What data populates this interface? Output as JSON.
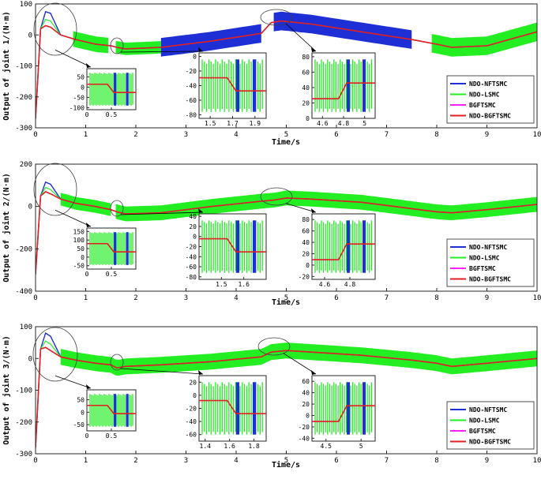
{
  "colors": {
    "nftsmc": "#1f2fd6",
    "lsmc": "#22ee22",
    "bgftsmc": "#ff22ff",
    "ndo_bgftsmc": "#e02020",
    "axis": "#262626",
    "ellipse": "#404040"
  },
  "legend": [
    "NDO-NFTSMC",
    "NDO-LSMC",
    "BGFTSMC",
    "NDO-BGFTSMC"
  ],
  "chart_data": [
    {
      "type": "line",
      "title": "",
      "xlabel": "Time/s",
      "ylabel": "Output of joint 1/(N·m)",
      "xlim": [
        0,
        10
      ],
      "ylim": [
        -300,
        100
      ],
      "xticks": [
        "0",
        "1",
        "2",
        "3",
        "4",
        "5",
        "6",
        "7",
        "8",
        "9",
        "10"
      ],
      "yticks": [
        "100",
        "0",
        "-100",
        "-200",
        "-300"
      ],
      "legend_position": "bottom-right",
      "baseline": {
        "x": [
          0,
          0.1,
          0.2,
          0.3,
          0.5,
          0.8,
          1.2,
          1.5,
          1.62,
          1.8,
          2.5,
          3.5,
          4.5,
          4.7,
          4.9,
          5.5,
          6.5,
          7.5,
          8.0,
          8.3,
          9,
          10
        ],
        "y": [
          -270,
          20,
          30,
          25,
          0,
          -15,
          -30,
          -35,
          -40,
          -45,
          -40,
          -20,
          5,
          40,
          45,
          35,
          10,
          -15,
          -30,
          -40,
          -35,
          10
        ]
      },
      "band": [
        {
          "x0": 0.75,
          "x1": 1.45,
          "half": 25,
          "color": "lsmc"
        },
        {
          "x0": 1.6,
          "x1": 2.5,
          "half": 20,
          "color": "lsmc"
        },
        {
          "x0": 2.5,
          "x1": 4.5,
          "half": 30,
          "color": "nftsmc"
        },
        {
          "x0": 4.75,
          "x1": 7.5,
          "half": 30,
          "color": "nftsmc"
        },
        {
          "x0": 7.9,
          "x1": 10,
          "half": 30,
          "color": "lsmc"
        }
      ],
      "insets": [
        {
          "xticks": [
            "0",
            "0.5"
          ],
          "yticks": [
            "50",
            "0",
            "-50",
            "-100"
          ],
          "ylim": [
            -110,
            90
          ],
          "xlim": [
            0,
            1.0
          ]
        },
        {
          "xticks": [
            "1.5",
            "1.7",
            "1.9"
          ],
          "yticks": [
            "0",
            "-20",
            "-40",
            "-60",
            "-80"
          ],
          "ylim": [
            -85,
            5
          ],
          "xlim": [
            1.4,
            2.0
          ]
        },
        {
          "xticks": [
            "4.6",
            "4.8",
            "5"
          ],
          "yticks": [
            "80",
            "60",
            "40",
            "20",
            "0"
          ],
          "ylim": [
            0,
            85
          ],
          "xlim": [
            4.5,
            5.1
          ]
        }
      ]
    },
    {
      "type": "line",
      "title": "",
      "xlabel": "Time/s",
      "ylabel": "Output of joint 2/(N·m)",
      "xlim": [
        0,
        10
      ],
      "ylim": [
        -400,
        200
      ],
      "xticks": [
        "0",
        "1",
        "2",
        "3",
        "4",
        "5",
        "6",
        "7",
        "8",
        "9",
        "10"
      ],
      "yticks": [
        "200",
        "0",
        "-200",
        "-400"
      ],
      "legend_position": "bottom-right",
      "baseline": {
        "x": [
          0,
          0.1,
          0.2,
          0.3,
          0.5,
          0.8,
          1.2,
          1.5,
          1.62,
          1.8,
          2.5,
          3.5,
          4.5,
          4.75,
          5.0,
          5.5,
          6.5,
          7.5,
          8.0,
          8.3,
          9,
          10
        ],
        "y": [
          -320,
          50,
          70,
          60,
          35,
          15,
          0,
          -15,
          -25,
          -35,
          -30,
          0,
          25,
          30,
          40,
          35,
          20,
          -10,
          -25,
          -30,
          -15,
          10
        ]
      },
      "band": [
        {
          "x0": 0.5,
          "x1": 1.5,
          "half": 30,
          "color": "lsmc"
        },
        {
          "x0": 1.6,
          "x1": 10,
          "half": 35,
          "color": "lsmc"
        }
      ],
      "insets": [
        {
          "xticks": [
            "0",
            "0.5"
          ],
          "yticks": [
            "150",
            "100",
            "50",
            "0",
            "-50"
          ],
          "ylim": [
            -70,
            170
          ],
          "xlim": [
            0,
            1.0
          ]
        },
        {
          "xticks": [
            "1.5",
            "1.6"
          ],
          "yticks": [
            "40",
            "20",
            "0",
            "-20",
            "-40",
            "-60",
            "-80"
          ],
          "ylim": [
            -85,
            45
          ],
          "xlim": [
            1.4,
            1.7
          ]
        },
        {
          "xticks": [
            "4.6",
            "4.8"
          ],
          "yticks": [
            "80",
            "60",
            "40",
            "20",
            "0",
            "-20"
          ],
          "ylim": [
            -25,
            90
          ],
          "xlim": [
            4.5,
            5.0
          ]
        }
      ]
    },
    {
      "type": "line",
      "title": "",
      "xlabel": "Time/s",
      "ylabel": "Output of joint 3/(N·m)",
      "xlim": [
        0,
        10
      ],
      "ylim": [
        -300,
        100
      ],
      "xticks": [
        "0",
        "1",
        "2",
        "3",
        "4",
        "5",
        "6",
        "7",
        "8",
        "9",
        "10"
      ],
      "yticks": [
        "100",
        "0",
        "-100",
        "-200",
        "-300"
      ],
      "legend_position": "bottom-right",
      "baseline": {
        "x": [
          0,
          0.1,
          0.2,
          0.3,
          0.5,
          0.8,
          1.2,
          1.5,
          1.62,
          1.8,
          2.5,
          3.5,
          4.5,
          4.7,
          5.0,
          5.5,
          6.5,
          7.5,
          8.0,
          8.3,
          9,
          10
        ],
        "y": [
          -280,
          30,
          35,
          25,
          5,
          -5,
          -15,
          -20,
          -30,
          -25,
          -20,
          -10,
          5,
          20,
          25,
          20,
          10,
          -5,
          -15,
          -25,
          -15,
          0
        ]
      },
      "band": [
        {
          "x0": 0.5,
          "x1": 10,
          "half": 25,
          "color": "lsmc"
        }
      ],
      "insets": [
        {
          "xticks": [
            "0",
            "0.5"
          ],
          "yticks": [
            "50",
            "0",
            "-50"
          ],
          "ylim": [
            -75,
            90
          ],
          "xlim": [
            0,
            1.0
          ]
        },
        {
          "xticks": [
            "1.4",
            "1.6",
            "1.8"
          ],
          "yticks": [
            "20",
            "0",
            "-20",
            "-40",
            "-60"
          ],
          "ylim": [
            -70,
            30
          ],
          "xlim": [
            1.35,
            1.9
          ]
        },
        {
          "xticks": [
            "4.5",
            "5"
          ],
          "yticks": [
            "60",
            "40",
            "20",
            "0",
            "-20",
            "-40"
          ],
          "ylim": [
            -45,
            70
          ],
          "xlim": [
            4.3,
            5.2
          ]
        }
      ]
    }
  ]
}
